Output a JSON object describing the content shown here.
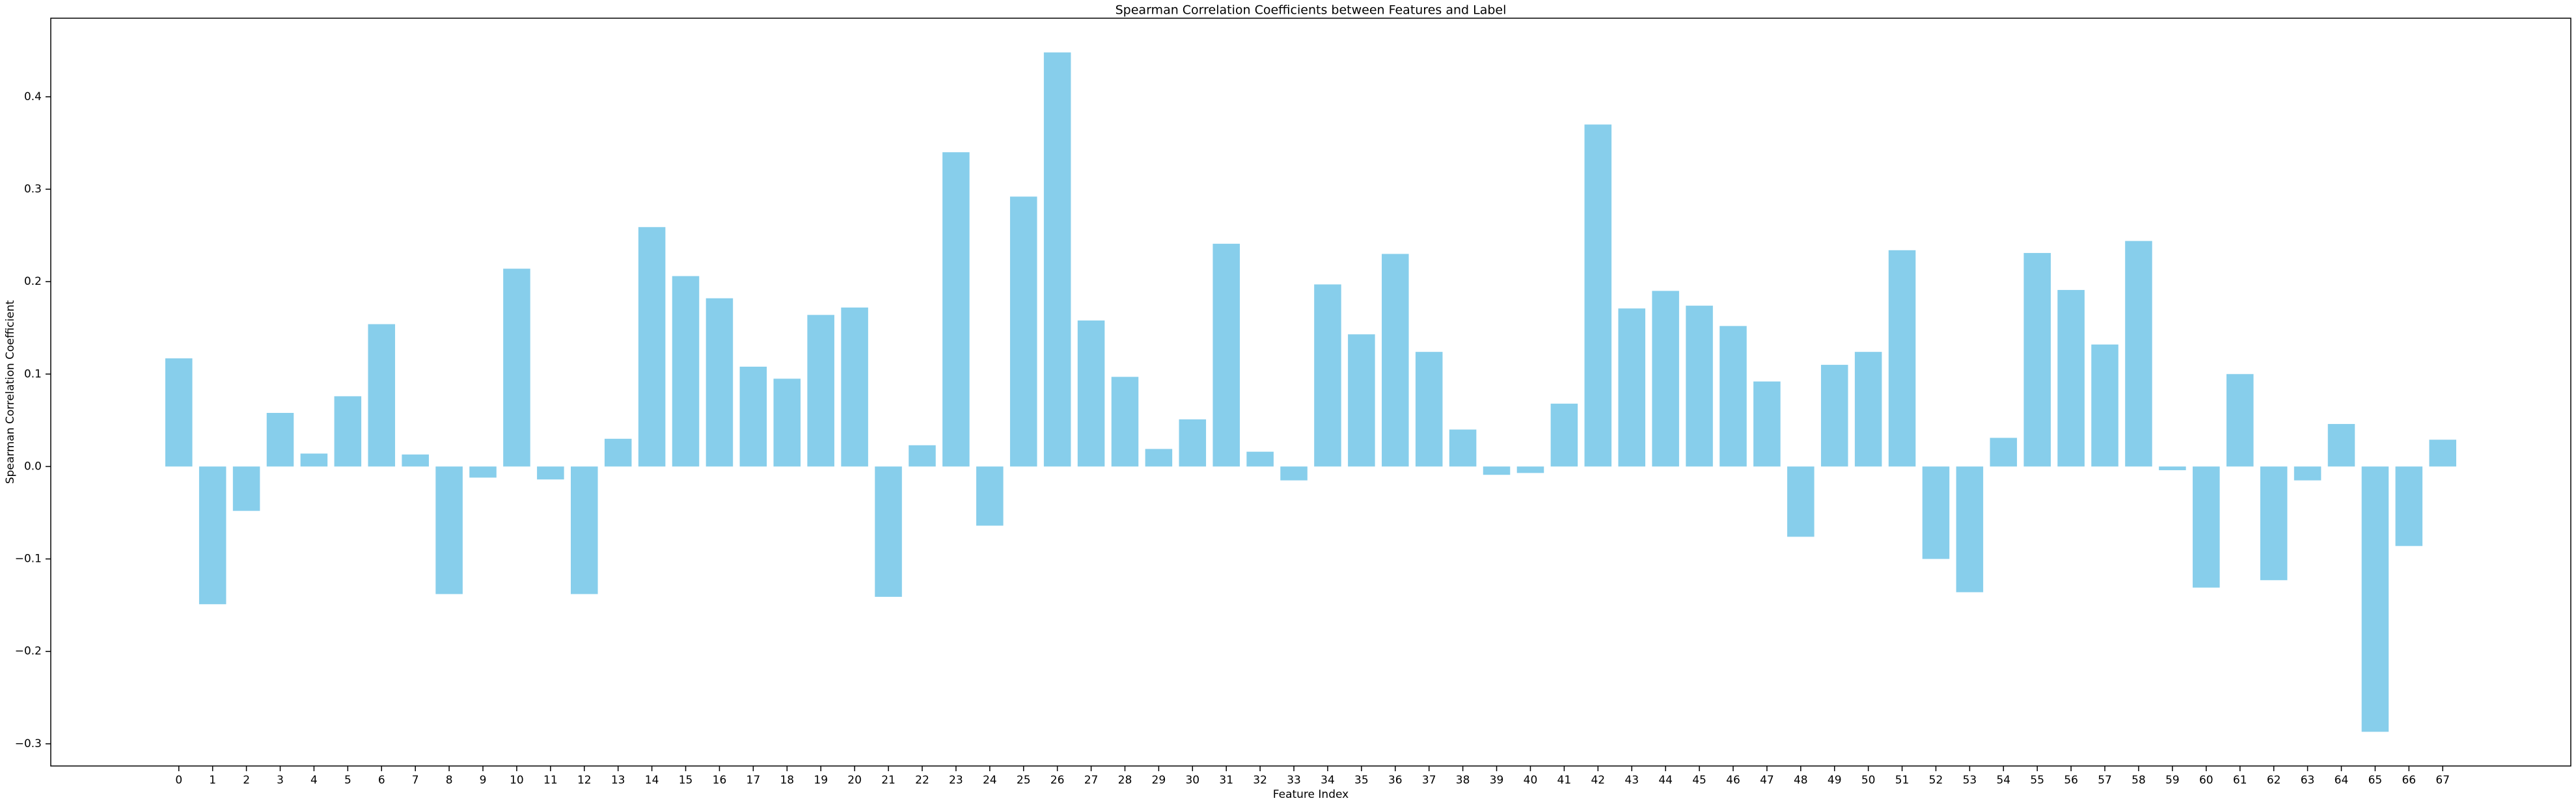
{
  "chart_data": {
    "type": "bar",
    "title": "Spearman Correlation Coefficients between Features and Label",
    "xlabel": "Feature Index",
    "ylabel": "Spearman Correlation Coefficient",
    "categories": [
      "0",
      "1",
      "2",
      "3",
      "4",
      "5",
      "6",
      "7",
      "8",
      "9",
      "10",
      "11",
      "12",
      "13",
      "14",
      "15",
      "16",
      "17",
      "18",
      "19",
      "20",
      "21",
      "22",
      "23",
      "24",
      "25",
      "26",
      "27",
      "28",
      "29",
      "30",
      "31",
      "32",
      "33",
      "34",
      "35",
      "36",
      "37",
      "38",
      "39",
      "40",
      "41",
      "42",
      "43",
      "44",
      "45",
      "46",
      "47",
      "48",
      "49",
      "50",
      "51",
      "52",
      "53",
      "54",
      "55",
      "56",
      "57",
      "58",
      "59",
      "60",
      "61",
      "62",
      "63",
      "64",
      "65",
      "66",
      "67"
    ],
    "values": [
      0.117,
      -0.149,
      -0.048,
      0.058,
      0.014,
      0.076,
      0.154,
      0.013,
      -0.138,
      -0.012,
      0.214,
      -0.014,
      -0.138,
      0.03,
      0.259,
      0.206,
      0.182,
      0.108,
      0.095,
      0.164,
      0.172,
      -0.141,
      0.023,
      0.34,
      -0.064,
      0.292,
      0.448,
      0.158,
      0.097,
      0.019,
      0.051,
      0.241,
      0.016,
      -0.015,
      0.197,
      0.143,
      0.23,
      0.124,
      0.04,
      -0.009,
      -0.007,
      0.068,
      0.37,
      0.171,
      0.19,
      0.174,
      0.152,
      0.092,
      -0.076,
      0.11,
      0.124,
      0.234,
      -0.1,
      -0.136,
      0.031,
      0.231,
      0.191,
      0.132,
      0.244,
      -0.004,
      -0.131,
      0.1,
      -0.123,
      -0.015,
      0.046,
      -0.287,
      -0.086,
      0.029
    ],
    "color": "#87ceeb",
    "ylim": [
      -0.324,
      0.485
    ],
    "yticks": [
      {
        "value": -0.3,
        "label": "−0.3"
      },
      {
        "value": -0.2,
        "label": "−0.2"
      },
      {
        "value": -0.1,
        "label": "−0.1"
      },
      {
        "value": 0,
        "label": "0.0"
      },
      0.1,
      0.2,
      0.3,
      0.4
    ],
    "grid": false
  }
}
